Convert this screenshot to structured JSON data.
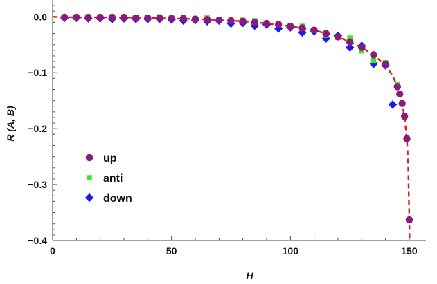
{
  "chart_data": {
    "type": "scatter",
    "title": "",
    "xlabel": "H",
    "ylabel": "R (A, B)",
    "xlim": [
      0,
      157
    ],
    "ylim": [
      -0.4,
      0.03
    ],
    "grid": false,
    "legend_position": "middle-left",
    "x_ticks": [
      {
        "value": 0,
        "label": "0"
      },
      {
        "value": 50,
        "label": "50"
      },
      {
        "value": 100,
        "label": "100"
      },
      {
        "value": 150,
        "label": "150"
      }
    ],
    "y_ticks": [
      {
        "value": 0.0,
        "label": "0.0"
      },
      {
        "value": -0.1,
        "label": "−0.1"
      },
      {
        "value": -0.2,
        "label": "−0.2"
      },
      {
        "value": -0.3,
        "label": "−0.3"
      },
      {
        "value": -0.4,
        "label": "−0.4"
      }
    ],
    "series": [
      {
        "name": "up",
        "marker": "circle",
        "color": "#8b1a7a",
        "x": [
          5,
          10,
          15,
          20,
          25,
          30,
          35,
          40,
          45,
          50,
          55,
          60,
          65,
          70,
          75,
          80,
          85,
          90,
          95,
          100,
          105,
          110,
          115,
          120,
          125,
          130,
          135,
          140,
          145,
          146,
          147,
          148,
          149,
          150
        ],
        "y": [
          -0.001,
          -0.001,
          -0.001,
          -0.001,
          -0.001,
          -0.001,
          -0.002,
          -0.002,
          -0.002,
          -0.003,
          -0.003,
          -0.004,
          -0.005,
          -0.006,
          -0.007,
          -0.008,
          -0.01,
          -0.012,
          -0.014,
          -0.017,
          -0.02,
          -0.024,
          -0.03,
          -0.036,
          -0.045,
          -0.055,
          -0.068,
          -0.085,
          -0.125,
          -0.138,
          -0.155,
          -0.178,
          -0.218,
          -0.363
        ]
      },
      {
        "name": "anti",
        "marker": "square",
        "color": "#33ee22",
        "x": [
          5,
          10,
          15,
          20,
          25,
          30,
          35,
          40,
          45,
          50,
          55,
          60,
          65,
          70,
          75,
          80,
          85,
          90,
          95,
          100,
          105,
          110,
          115,
          120,
          125,
          130,
          135,
          140,
          145
        ],
        "y": [
          0.0,
          0.0,
          0.0,
          0.0,
          0.0,
          0.0,
          -0.001,
          -0.001,
          0.0,
          -0.002,
          -0.002,
          -0.003,
          -0.002,
          -0.005,
          -0.006,
          -0.006,
          -0.007,
          -0.012,
          -0.013,
          -0.016,
          -0.017,
          -0.023,
          -0.033,
          -0.037,
          -0.038,
          -0.061,
          -0.078,
          -0.082,
          -0.121
        ]
      },
      {
        "name": "down",
        "marker": "diamond",
        "color": "#1a1aee",
        "x": [
          5,
          10,
          15,
          20,
          25,
          30,
          35,
          40,
          45,
          50,
          55,
          60,
          65,
          70,
          75,
          80,
          85,
          90,
          95,
          100,
          105,
          110,
          115,
          120,
          125,
          130,
          135,
          140,
          143
        ],
        "y": [
          -0.002,
          -0.002,
          -0.003,
          -0.003,
          -0.004,
          -0.003,
          -0.004,
          -0.004,
          -0.004,
          -0.005,
          -0.007,
          -0.006,
          -0.008,
          -0.007,
          -0.012,
          -0.011,
          -0.016,
          -0.014,
          -0.021,
          -0.019,
          -0.028,
          -0.026,
          -0.039,
          -0.034,
          -0.055,
          -0.052,
          -0.084,
          -0.087,
          -0.157
        ]
      }
    ],
    "fit_curve": {
      "style": "dashed",
      "color": "#e31a1c",
      "x": [
        0,
        10,
        20,
        30,
        40,
        50,
        60,
        70,
        80,
        90,
        100,
        110,
        115,
        120,
        125,
        130,
        135,
        140,
        143,
        145,
        147,
        148,
        149,
        149.5,
        150,
        150.3
      ],
      "y": [
        0.0,
        -0.001,
        -0.001,
        -0.001,
        -0.002,
        -0.003,
        -0.004,
        -0.006,
        -0.008,
        -0.012,
        -0.017,
        -0.024,
        -0.03,
        -0.036,
        -0.045,
        -0.055,
        -0.068,
        -0.087,
        -0.105,
        -0.125,
        -0.155,
        -0.178,
        -0.218,
        -0.26,
        -0.363,
        -0.45
      ]
    }
  }
}
